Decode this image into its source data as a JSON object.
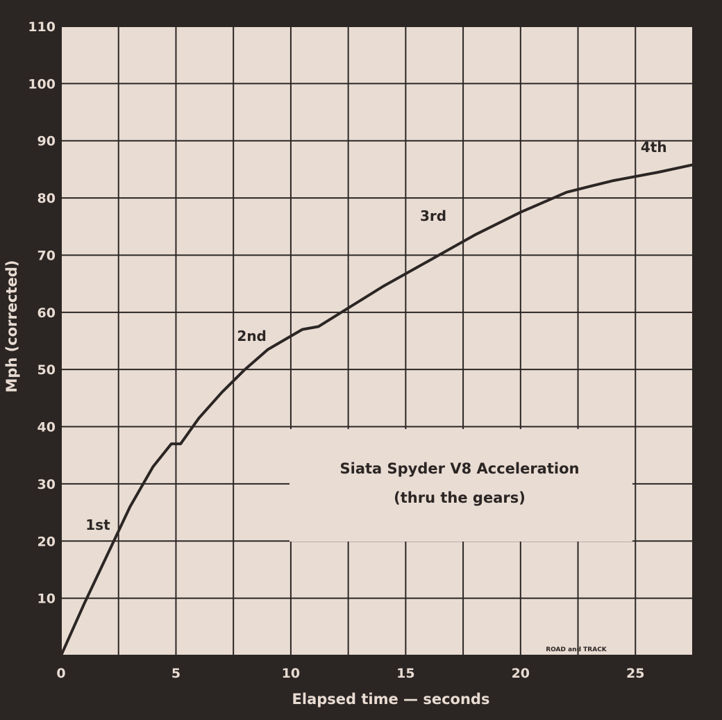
{
  "chart_data": {
    "type": "line",
    "title": "Siata Spyder V8 Acceleration",
    "subtitle": "(thru the gears)",
    "xlabel": "Elapsed time — seconds",
    "ylabel": "Mph (corrected)",
    "credit": "ROAD and TRACK",
    "xlim": [
      0,
      27.5
    ],
    "ylim": [
      0,
      110
    ],
    "x_ticks": [
      "0",
      "5",
      "10",
      "15",
      "20",
      "25"
    ],
    "y_ticks": [
      "10",
      "20",
      "30",
      "40",
      "50",
      "60",
      "70",
      "80",
      "90",
      "100",
      "110"
    ],
    "grid": true,
    "annotations": [
      {
        "text": "1st",
        "x": 1.6,
        "y": 22
      },
      {
        "text": "2nd",
        "x": 8.3,
        "y": 55
      },
      {
        "text": "3rd",
        "x": 16.2,
        "y": 76
      },
      {
        "text": "4th",
        "x": 25.8,
        "y": 88
      }
    ],
    "series": [
      {
        "values": [
          [
            0,
            0
          ],
          [
            1,
            9
          ],
          [
            2,
            17.5
          ],
          [
            3,
            26
          ],
          [
            4,
            33
          ],
          [
            4.8,
            37
          ],
          [
            5.2,
            37
          ],
          [
            6,
            41.5
          ],
          [
            7,
            46
          ],
          [
            8,
            50
          ],
          [
            9,
            53.5
          ],
          [
            10.5,
            57
          ],
          [
            11.2,
            57.5
          ],
          [
            12,
            59.5
          ],
          [
            14,
            64.5
          ],
          [
            16,
            69
          ],
          [
            18,
            73.5
          ],
          [
            20,
            77.5
          ],
          [
            22,
            81
          ],
          [
            23,
            82
          ],
          [
            24,
            83
          ],
          [
            26,
            84.5
          ],
          [
            27.5,
            85.8
          ]
        ]
      }
    ]
  }
}
